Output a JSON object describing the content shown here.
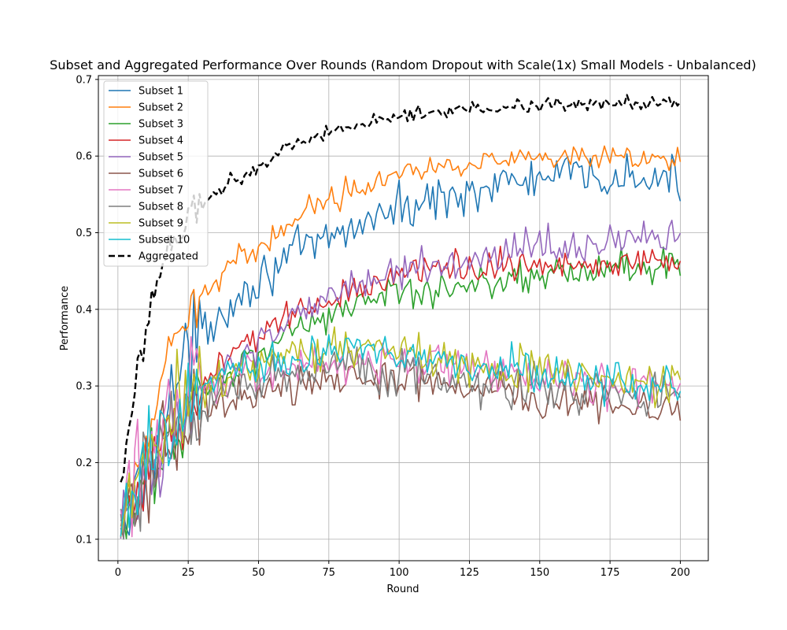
{
  "chart_data": {
    "type": "line",
    "title": "Subset and Aggregated Performance Over Rounds (Random Dropout with Scale(1x) Small Models - Unbalanced)",
    "xlabel": "Round",
    "ylabel": "Performance",
    "xlim": [
      -6.95,
      209.95
    ],
    "ylim": [
      0.072,
      0.705
    ],
    "xticks": [
      0,
      25,
      50,
      75,
      100,
      125,
      150,
      175,
      200
    ],
    "yticks": [
      0.1,
      0.2,
      0.3,
      0.4,
      0.5,
      0.6,
      0.7
    ],
    "ytick_labels": [
      "0.1",
      "0.2",
      "0.3",
      "0.4",
      "0.5",
      "0.6",
      "0.7"
    ],
    "grid": true,
    "legend_position": "upper-left",
    "x": {
      "start": 1,
      "end": 200,
      "step": 1
    },
    "series": [
      {
        "name": "Subset 1",
        "color": "#1f77b4",
        "style": "solid",
        "points": [
          [
            1,
            0.1
          ],
          [
            10,
            0.19
          ],
          [
            20,
            0.3
          ],
          [
            30,
            0.37
          ],
          [
            40,
            0.41
          ],
          [
            50,
            0.44
          ],
          [
            60,
            0.47
          ],
          [
            70,
            0.48
          ],
          [
            80,
            0.5
          ],
          [
            90,
            0.52
          ],
          [
            100,
            0.53
          ],
          [
            110,
            0.54
          ],
          [
            120,
            0.55
          ],
          [
            130,
            0.56
          ],
          [
            140,
            0.565
          ],
          [
            150,
            0.57
          ],
          [
            160,
            0.575
          ],
          [
            170,
            0.57
          ],
          [
            180,
            0.57
          ],
          [
            190,
            0.568
          ],
          [
            200,
            0.565
          ]
        ],
        "noise": 0.014
      },
      {
        "name": "Subset 2",
        "color": "#ff7f0e",
        "style": "solid",
        "points": [
          [
            1,
            0.11
          ],
          [
            10,
            0.23
          ],
          [
            20,
            0.35
          ],
          [
            30,
            0.42
          ],
          [
            40,
            0.46
          ],
          [
            50,
            0.48
          ],
          [
            60,
            0.51
          ],
          [
            70,
            0.54
          ],
          [
            80,
            0.55
          ],
          [
            90,
            0.57
          ],
          [
            100,
            0.58
          ],
          [
            110,
            0.585
          ],
          [
            120,
            0.59
          ],
          [
            130,
            0.595
          ],
          [
            140,
            0.593
          ],
          [
            150,
            0.595
          ],
          [
            160,
            0.595
          ],
          [
            170,
            0.595
          ],
          [
            180,
            0.595
          ],
          [
            190,
            0.595
          ],
          [
            200,
            0.595
          ]
        ],
        "noise": 0.008
      },
      {
        "name": "Subset 3",
        "color": "#2ca02c",
        "style": "solid",
        "points": [
          [
            1,
            0.1
          ],
          [
            10,
            0.17
          ],
          [
            20,
            0.24
          ],
          [
            30,
            0.29
          ],
          [
            40,
            0.32
          ],
          [
            50,
            0.34
          ],
          [
            60,
            0.37
          ],
          [
            70,
            0.39
          ],
          [
            80,
            0.4
          ],
          [
            90,
            0.41
          ],
          [
            100,
            0.42
          ],
          [
            110,
            0.425
          ],
          [
            120,
            0.43
          ],
          [
            130,
            0.44
          ],
          [
            140,
            0.44
          ],
          [
            150,
            0.445
          ],
          [
            160,
            0.45
          ],
          [
            170,
            0.45
          ],
          [
            180,
            0.455
          ],
          [
            190,
            0.455
          ],
          [
            200,
            0.455
          ]
        ],
        "noise": 0.012
      },
      {
        "name": "Subset 4",
        "color": "#d62728",
        "style": "solid",
        "points": [
          [
            1,
            0.1
          ],
          [
            10,
            0.18
          ],
          [
            20,
            0.25
          ],
          [
            30,
            0.3
          ],
          [
            40,
            0.34
          ],
          [
            50,
            0.37
          ],
          [
            60,
            0.39
          ],
          [
            70,
            0.41
          ],
          [
            80,
            0.42
          ],
          [
            90,
            0.43
          ],
          [
            100,
            0.44
          ],
          [
            110,
            0.45
          ],
          [
            120,
            0.455
          ],
          [
            130,
            0.46
          ],
          [
            140,
            0.46
          ],
          [
            150,
            0.46
          ],
          [
            160,
            0.462
          ],
          [
            170,
            0.462
          ],
          [
            180,
            0.465
          ],
          [
            190,
            0.465
          ],
          [
            200,
            0.465
          ]
        ],
        "noise": 0.011
      },
      {
        "name": "Subset 5",
        "color": "#9467bd",
        "style": "solid",
        "points": [
          [
            1,
            0.1
          ],
          [
            10,
            0.17
          ],
          [
            20,
            0.25
          ],
          [
            30,
            0.3
          ],
          [
            40,
            0.33
          ],
          [
            50,
            0.35
          ],
          [
            60,
            0.38
          ],
          [
            70,
            0.41
          ],
          [
            80,
            0.43
          ],
          [
            90,
            0.44
          ],
          [
            100,
            0.45
          ],
          [
            110,
            0.46
          ],
          [
            120,
            0.465
          ],
          [
            130,
            0.47
          ],
          [
            140,
            0.475
          ],
          [
            150,
            0.48
          ],
          [
            160,
            0.48
          ],
          [
            170,
            0.485
          ],
          [
            180,
            0.49
          ],
          [
            190,
            0.49
          ],
          [
            200,
            0.49
          ]
        ],
        "noise": 0.012
      },
      {
        "name": "Subset 6",
        "color": "#8c564b",
        "style": "solid",
        "points": [
          [
            1,
            0.1
          ],
          [
            10,
            0.18
          ],
          [
            20,
            0.24
          ],
          [
            30,
            0.27
          ],
          [
            40,
            0.285
          ],
          [
            50,
            0.295
          ],
          [
            60,
            0.3
          ],
          [
            70,
            0.305
          ],
          [
            80,
            0.31
          ],
          [
            90,
            0.31
          ],
          [
            100,
            0.31
          ],
          [
            110,
            0.305
          ],
          [
            120,
            0.3
          ],
          [
            130,
            0.295
          ],
          [
            140,
            0.29
          ],
          [
            150,
            0.285
          ],
          [
            160,
            0.28
          ],
          [
            170,
            0.275
          ],
          [
            180,
            0.27
          ],
          [
            190,
            0.265
          ],
          [
            200,
            0.265
          ]
        ],
        "noise": 0.013
      },
      {
        "name": "Subset 7",
        "color": "#e377c2",
        "style": "solid",
        "points": [
          [
            1,
            0.14
          ],
          [
            10,
            0.2
          ],
          [
            20,
            0.26
          ],
          [
            30,
            0.3
          ],
          [
            40,
            0.315
          ],
          [
            50,
            0.32
          ],
          [
            60,
            0.325
          ],
          [
            70,
            0.33
          ],
          [
            80,
            0.335
          ],
          [
            90,
            0.335
          ],
          [
            100,
            0.335
          ],
          [
            110,
            0.33
          ],
          [
            120,
            0.325
          ],
          [
            130,
            0.32
          ],
          [
            140,
            0.315
          ],
          [
            150,
            0.31
          ],
          [
            160,
            0.305
          ],
          [
            170,
            0.3
          ],
          [
            180,
            0.3
          ],
          [
            190,
            0.295
          ],
          [
            200,
            0.295
          ]
        ],
        "noise": 0.014
      },
      {
        "name": "Subset 8",
        "color": "#7f7f7f",
        "style": "solid",
        "points": [
          [
            1,
            0.1
          ],
          [
            10,
            0.17
          ],
          [
            20,
            0.23
          ],
          [
            30,
            0.27
          ],
          [
            40,
            0.29
          ],
          [
            50,
            0.31
          ],
          [
            60,
            0.315
          ],
          [
            70,
            0.32
          ],
          [
            80,
            0.325
          ],
          [
            90,
            0.325
          ],
          [
            100,
            0.32
          ],
          [
            110,
            0.315
          ],
          [
            120,
            0.31
          ],
          [
            130,
            0.305
          ],
          [
            140,
            0.3
          ],
          [
            150,
            0.3
          ],
          [
            160,
            0.295
          ],
          [
            170,
            0.295
          ],
          [
            180,
            0.29
          ],
          [
            190,
            0.29
          ],
          [
            200,
            0.29
          ]
        ],
        "noise": 0.014
      },
      {
        "name": "Subset 9",
        "color": "#bcbd22",
        "style": "solid",
        "points": [
          [
            1,
            0.11
          ],
          [
            10,
            0.19
          ],
          [
            20,
            0.26
          ],
          [
            30,
            0.3
          ],
          [
            40,
            0.32
          ],
          [
            50,
            0.33
          ],
          [
            60,
            0.34
          ],
          [
            70,
            0.345
          ],
          [
            80,
            0.35
          ],
          [
            90,
            0.35
          ],
          [
            100,
            0.345
          ],
          [
            110,
            0.34
          ],
          [
            120,
            0.335
          ],
          [
            130,
            0.33
          ],
          [
            140,
            0.325
          ],
          [
            150,
            0.32
          ],
          [
            160,
            0.315
          ],
          [
            170,
            0.31
          ],
          [
            180,
            0.305
          ],
          [
            190,
            0.3
          ],
          [
            200,
            0.3
          ]
        ],
        "noise": 0.014
      },
      {
        "name": "Subset 10",
        "color": "#17becf",
        "style": "solid",
        "points": [
          [
            1,
            0.11
          ],
          [
            10,
            0.19
          ],
          [
            20,
            0.26
          ],
          [
            30,
            0.3
          ],
          [
            40,
            0.32
          ],
          [
            50,
            0.33
          ],
          [
            60,
            0.335
          ],
          [
            70,
            0.34
          ],
          [
            80,
            0.345
          ],
          [
            90,
            0.345
          ],
          [
            100,
            0.34
          ],
          [
            110,
            0.335
          ],
          [
            120,
            0.33
          ],
          [
            130,
            0.325
          ],
          [
            140,
            0.32
          ],
          [
            150,
            0.315
          ],
          [
            160,
            0.31
          ],
          [
            170,
            0.31
          ],
          [
            180,
            0.305
          ],
          [
            190,
            0.3
          ],
          [
            200,
            0.3
          ]
        ],
        "noise": 0.014
      },
      {
        "name": "Aggregated",
        "color": "#000000",
        "style": "dashed",
        "points": [
          [
            1,
            0.17
          ],
          [
            5,
            0.28
          ],
          [
            10,
            0.38
          ],
          [
            15,
            0.45
          ],
          [
            20,
            0.5
          ],
          [
            30,
            0.54
          ],
          [
            40,
            0.565
          ],
          [
            50,
            0.585
          ],
          [
            60,
            0.61
          ],
          [
            70,
            0.625
          ],
          [
            80,
            0.635
          ],
          [
            90,
            0.645
          ],
          [
            100,
            0.652
          ],
          [
            110,
            0.655
          ],
          [
            120,
            0.66
          ],
          [
            130,
            0.663
          ],
          [
            140,
            0.665
          ],
          [
            150,
            0.667
          ],
          [
            160,
            0.668
          ],
          [
            170,
            0.669
          ],
          [
            180,
            0.67
          ],
          [
            190,
            0.67
          ],
          [
            200,
            0.67
          ]
        ],
        "noise": 0.005
      }
    ]
  }
}
